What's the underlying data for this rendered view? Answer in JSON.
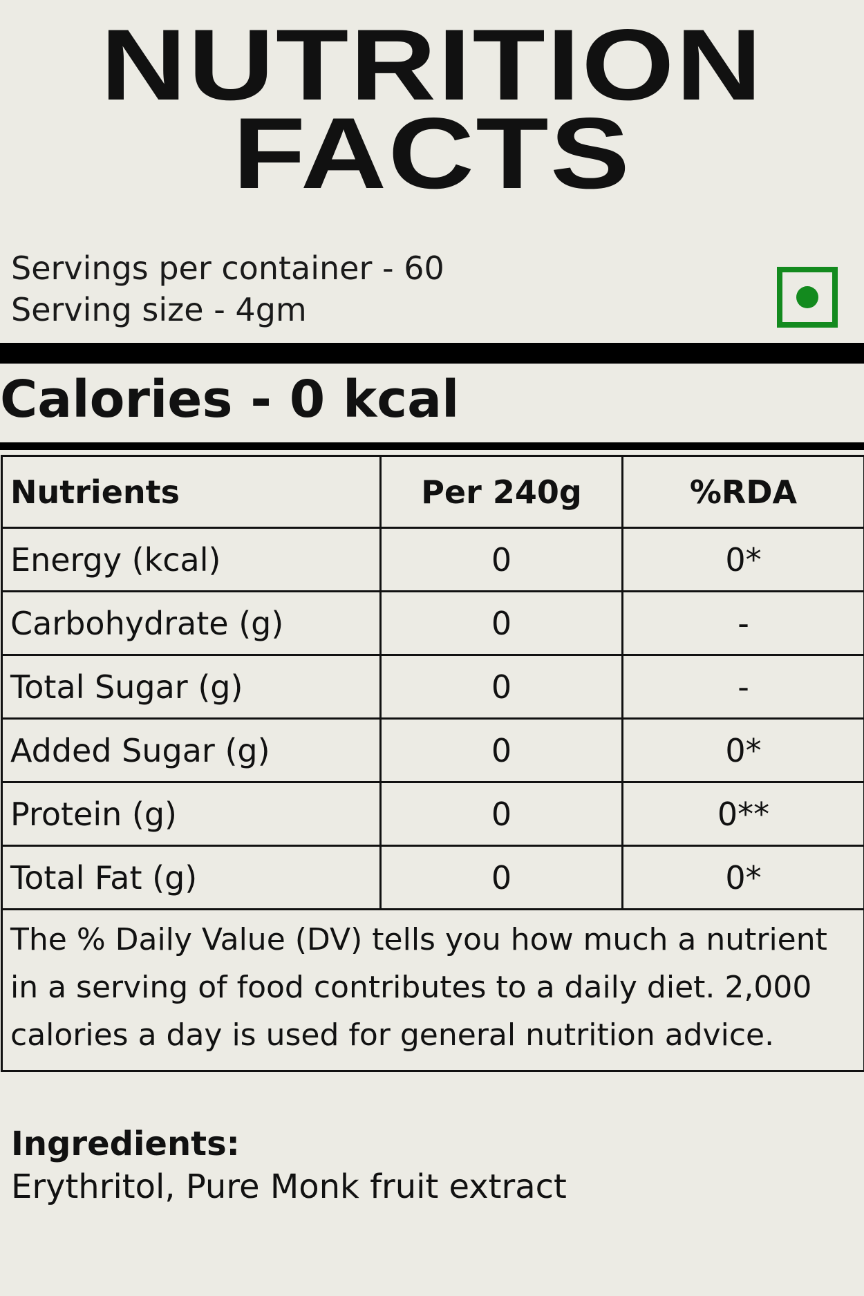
{
  "title": {
    "line1": "NUTRITION",
    "line2": "FACTS"
  },
  "servings": {
    "per_container": "Servings per container - 60",
    "size": "Serving size - 4gm"
  },
  "veg_mark": {
    "icon": "vegetarian-mark-icon",
    "color": "#138a1e"
  },
  "calories": "Calories - 0 kcal",
  "table": {
    "headers": [
      "Nutrients",
      "Per 240g",
      "%RDA"
    ],
    "rows": [
      {
        "nutrient": "Energy (kcal)",
        "per": "0",
        "rda": "0*"
      },
      {
        "nutrient": "Carbohydrate (g)",
        "per": "0",
        "rda": "-"
      },
      {
        "nutrient": "Total Sugar (g)",
        "per": "0",
        "rda": "-"
      },
      {
        "nutrient": "Added Sugar (g)",
        "per": "0",
        "rda": "0*"
      },
      {
        "nutrient": "Protein (g)",
        "per": "0",
        "rda": "0**"
      },
      {
        "nutrient": "Total Fat (g)",
        "per": "0",
        "rda": "0*"
      }
    ],
    "note": "The % Daily Value (DV) tells you how much a nutrient in a serving of food contributes to a daily diet. 2,000 calories a day is used for general nutrition advice."
  },
  "ingredients": {
    "label": "Ingredients:",
    "value": "Erythritol, Pure Monk fruit extract"
  },
  "colors": {
    "background": "#ecebe4",
    "text": "#111111",
    "veg_green": "#138a1e"
  }
}
